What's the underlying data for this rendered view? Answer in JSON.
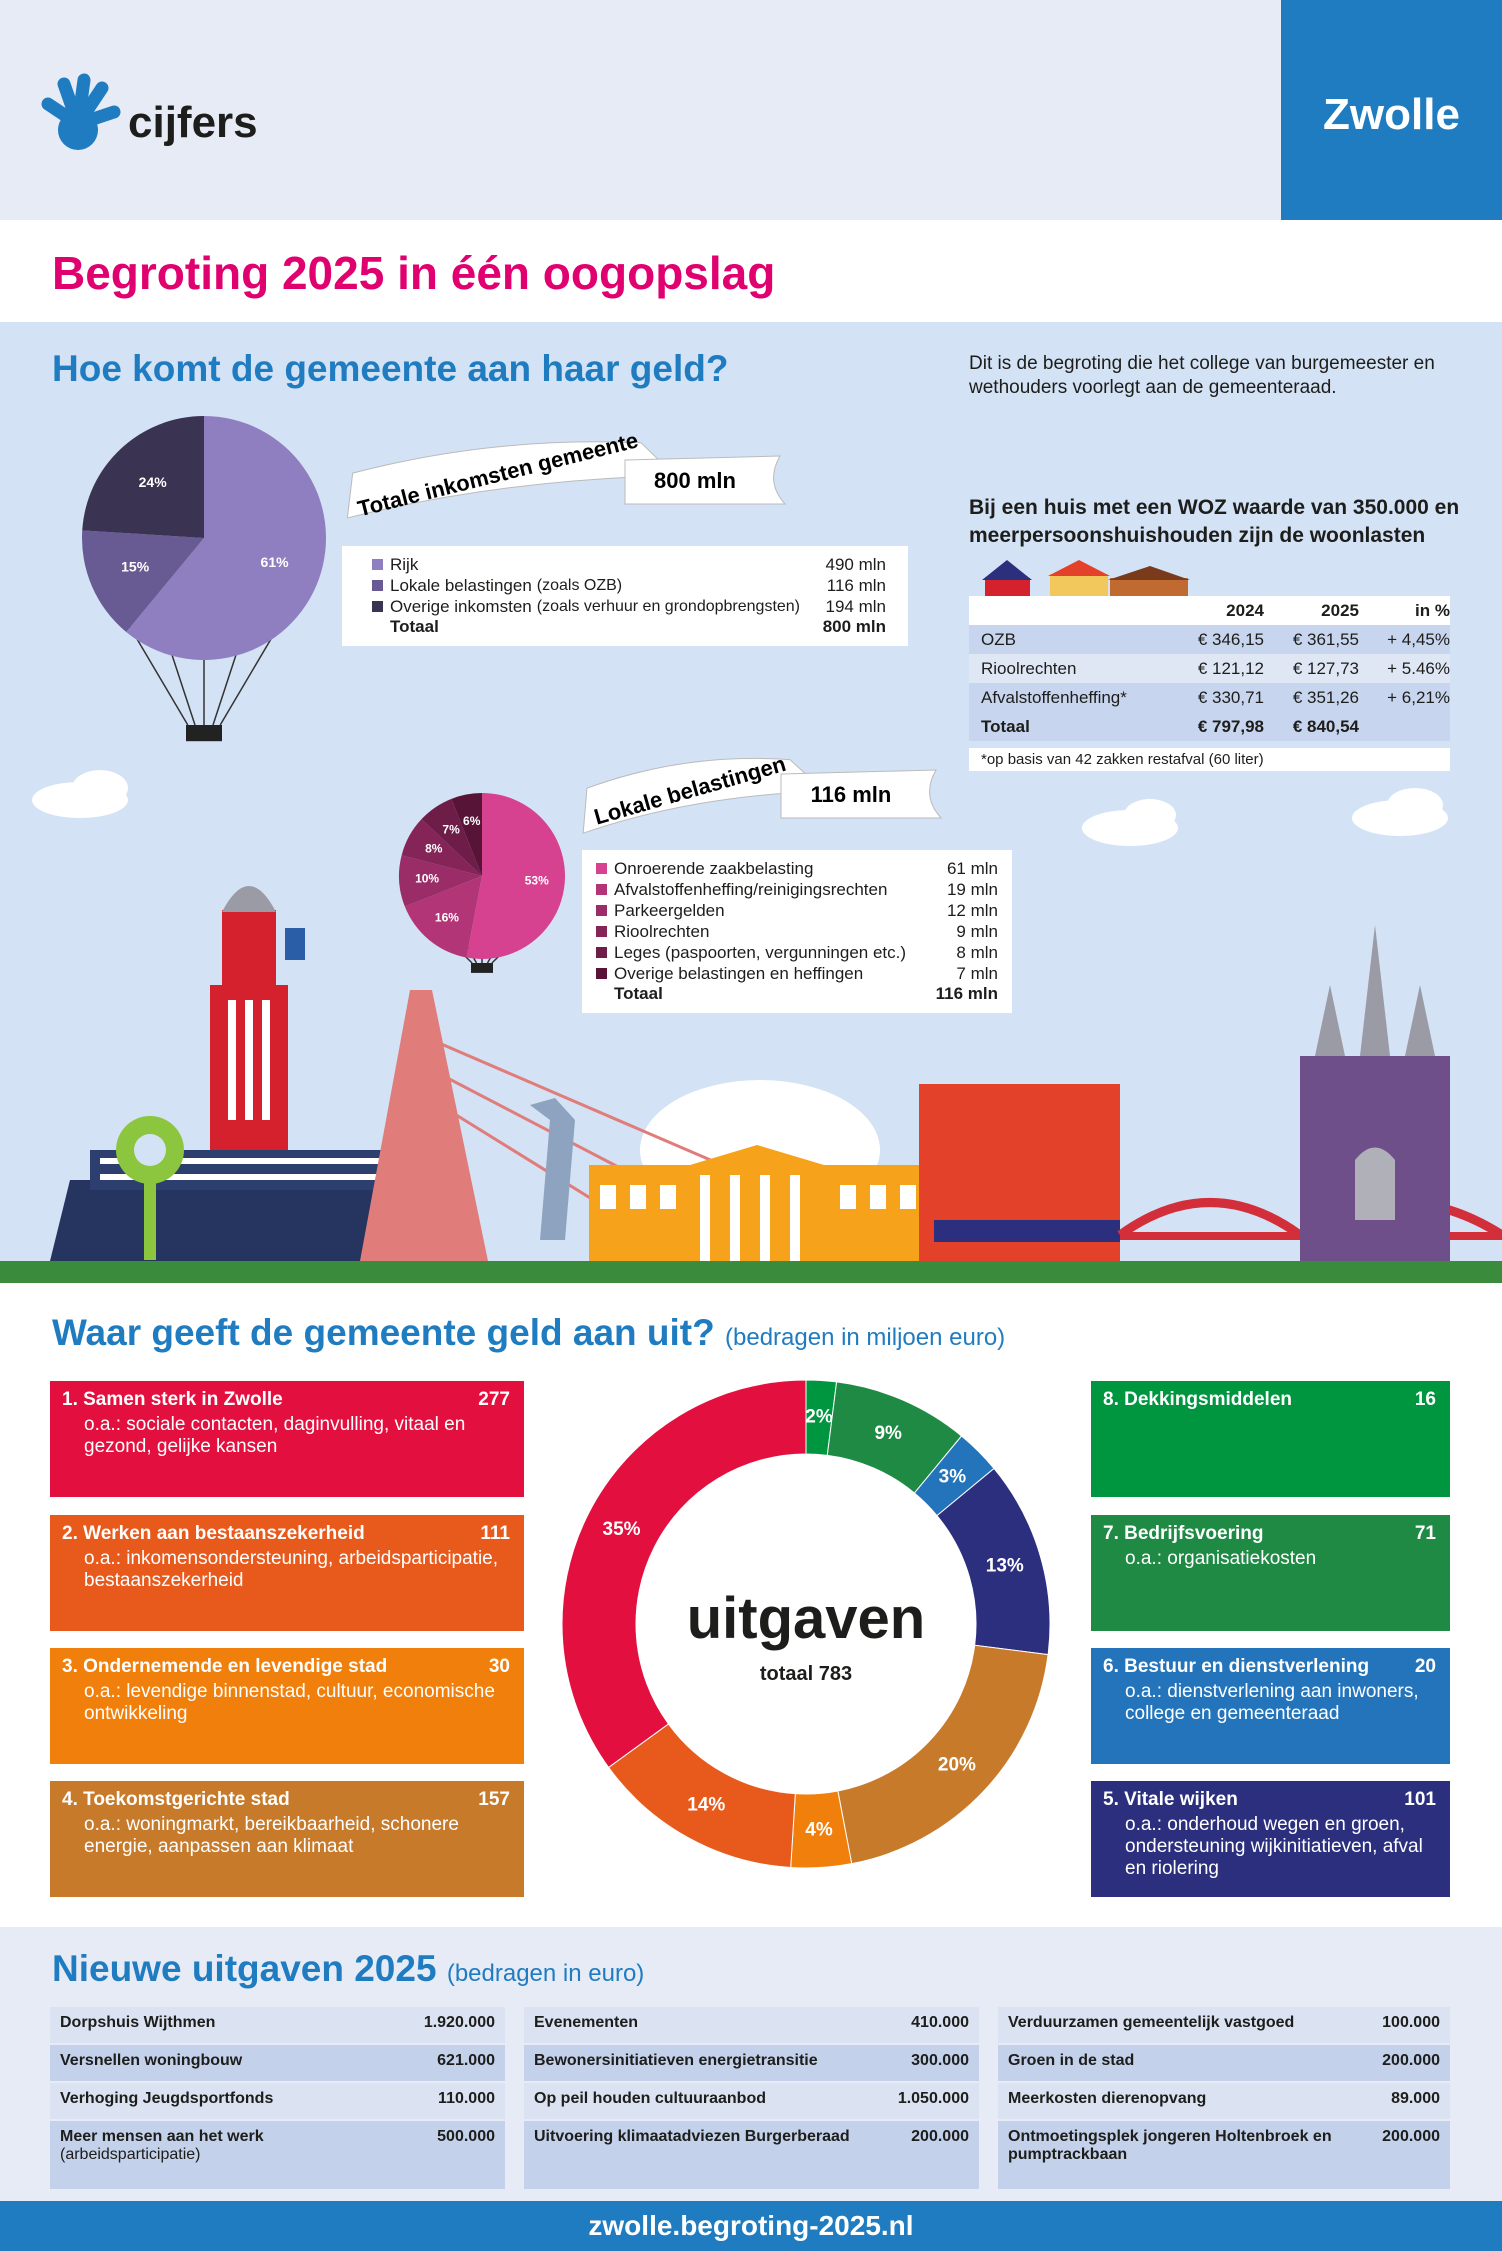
{
  "header": {
    "logo_text": "cijfers",
    "city": "Zwolle"
  },
  "title": "Begroting 2025 in één oogopslag",
  "income": {
    "heading": "Hoe komt de gemeente aan haar geld?",
    "banner": "Totale inkomsten gemeente",
    "banner_total": "800 mln",
    "pie": {
      "type": "pie",
      "values": [
        61,
        15,
        24
      ],
      "value_labels": [
        "61%",
        "15%",
        "24%"
      ],
      "colors": [
        "#8f7fc0",
        "#685a92",
        "#3a3352"
      ]
    },
    "legend": [
      {
        "name": "Rijk",
        "amount": "490 mln"
      },
      {
        "name": "Lokale belastingen",
        "note": "(zoals OZB)",
        "amount": "116 mln"
      },
      {
        "name": "Overige inkomsten",
        "note": "(zoals verhuur en grondopbrengsten)",
        "amount": "194 mln"
      }
    ],
    "total": {
      "name": "Totaal",
      "amount": "800 mln"
    }
  },
  "intro": "Dit is de begroting die het college van burgemeester en wethouders voorlegt aan de gemeenteraad.",
  "housing": {
    "heading": "Bij een huis met een WOZ waarde van 350.000 en meerpersoonshuishouden zijn de woonlasten",
    "columns": [
      "2024",
      "2025",
      "in %"
    ],
    "rows": [
      [
        "OZB",
        "€ 346,15",
        "€ 361,55",
        "+ 4,45%"
      ],
      [
        "Rioolrechten",
        "€ 121,12",
        "€ 127,73",
        "+ 5.46%"
      ],
      [
        "Afvalstoffenheffing*",
        "€ 330,71",
        "€ 351,26",
        "+ 6,21%"
      ]
    ],
    "total": [
      "Totaal",
      "€ 797,98",
      "€ 840,54"
    ],
    "note": "*op basis van 42 zakken restafval (60 liter)"
  },
  "local_taxes": {
    "banner": "Lokale belastingen",
    "banner_total": "116 mln",
    "pie": {
      "type": "pie",
      "values": [
        53,
        16,
        10,
        8,
        7,
        6
      ],
      "value_labels": [
        "53%",
        "16%",
        "10%",
        "8%",
        "7%",
        "6%"
      ],
      "colors": [
        "#d6428f",
        "#b23577",
        "#9a2c68",
        "#842457",
        "#6e1c48",
        "#571436"
      ]
    },
    "legend": [
      {
        "name": "Onroerende zaakbelasting",
        "amount": "61 mln"
      },
      {
        "name": "Afvalstoffenheffing/reinigingsrechten",
        "amount": "19 mln"
      },
      {
        "name": "Parkeergelden",
        "amount": "12 mln"
      },
      {
        "name": "Rioolrechten",
        "amount": "9 mln"
      },
      {
        "name": "Leges (paspoorten, vergunningen etc.)",
        "amount": "8 mln"
      },
      {
        "name": "Overige belastingen en heffingen",
        "amount": "7 mln"
      }
    ],
    "total": {
      "name": "Totaal",
      "amount": "116 mln"
    }
  },
  "spending": {
    "heading": "Waar geeft de gemeente geld aan uit?",
    "subheading": "(bedragen in miljoen euro)",
    "center_title": "uitgaven",
    "center_total": "totaal 783",
    "programs": [
      {
        "title": "1. Samen sterk in Zwolle",
        "amount": 277,
        "description": "o.a.: sociale contacten, daginvulling, vitaal en gezond, gelijke kansen",
        "color": "#e3103f"
      },
      {
        "title": "2. Werken aan bestaanszekerheid",
        "amount": 111,
        "description": "o.a.: inkomensondersteuning, arbeidsparticipatie, bestaanszekerheid",
        "color": "#e85a1c"
      },
      {
        "title": "3. Ondernemende en levendige stad",
        "amount": 30,
        "description": "o.a.: levendige binnenstad, cultuur, economische ontwikkeling",
        "color": "#f07f0b"
      },
      {
        "title": "4. Toekomstgerichte stad",
        "amount": 157,
        "description": "o.a.: woningmarkt, bereikbaarheid, schonere energie, aanpassen aan klimaat",
        "color": "#c77a2a"
      },
      {
        "title": "5. Vitale wijken",
        "amount": 101,
        "description": "o.a.: onderhoud wegen en groen, ondersteuning wijkinitiatieven, afval en riolering",
        "color": "#2b2f7e"
      },
      {
        "title": "6. Bestuur en dienstverlening",
        "amount": 20,
        "description": "o.a.: dienstverlening aan inwoners, college en gemeenteraad",
        "color": "#2374bb"
      },
      {
        "title": "7. Bedrijfsvoering",
        "amount": 71,
        "description": "o.a.: organisatiekosten",
        "color": "#1e8a44"
      },
      {
        "title": "8. Dekkingsmiddelen",
        "amount": 16,
        "color": "#009640"
      }
    ],
    "donut": {
      "type": "donut",
      "values": [
        2,
        9,
        3,
        13,
        20,
        4,
        14,
        35
      ],
      "value_labels": [
        "2%",
        "9%",
        "3%",
        "13%",
        "20%",
        "4%",
        "14%",
        "35%"
      ],
      "colors": [
        "#009640",
        "#1e8a44",
        "#2374bb",
        "#2b2f7e",
        "#c77a2a",
        "#f07f0b",
        "#e85a1c",
        "#e3103f"
      ]
    }
  },
  "new_spending": {
    "heading": "Nieuwe uitgaven 2025",
    "subheading": "(bedragen in euro)",
    "columns": [
      [
        {
          "name": "Dorpshuis Wijthmen",
          "amount": "1.920.000"
        },
        {
          "name": "Versnellen woningbouw",
          "amount": "621.000"
        },
        {
          "name": "Verhoging Jeugdsportfonds",
          "amount": "110.000"
        },
        {
          "name": "Meer mensen aan het werk",
          "note": "(arbeidsparticipatie)",
          "amount": "500.000"
        }
      ],
      [
        {
          "name": "Evenementen",
          "amount": "410.000"
        },
        {
          "name": "Bewonersinitiatieven energietransitie",
          "amount": "300.000"
        },
        {
          "name": "Op peil houden cultuuraanbod",
          "amount": "1.050.000"
        },
        {
          "name": "Uitvoering klimaatadviezen Burgerberaad",
          "amount": "200.000"
        }
      ],
      [
        {
          "name": "Verduurzamen gemeentelijk vastgoed",
          "amount": "100.000"
        },
        {
          "name": "Groen in de stad",
          "amount": "200.000"
        },
        {
          "name": "Meerkosten dierenopvang",
          "amount": "89.000"
        },
        {
          "name": "Ontmoetingsplek jongeren Holtenbroek en pumptrackbaan",
          "amount": "200.000"
        }
      ]
    ]
  },
  "footer": "zwolle.begroting-2025.nl"
}
